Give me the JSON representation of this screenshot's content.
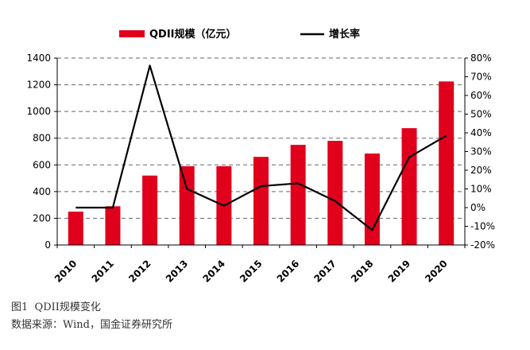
{
  "chart_data": {
    "type": "bar+line",
    "categories": [
      "2010",
      "2011",
      "2012",
      "2013",
      "2014",
      "2015",
      "2016",
      "2017",
      "2018",
      "2019",
      "2020"
    ],
    "series": [
      {
        "name": "QDII规模（亿元）",
        "type": "bar",
        "axis": "left",
        "values": [
          250,
          290,
          520,
          590,
          590,
          660,
          750,
          780,
          685,
          875,
          1225
        ]
      },
      {
        "name": "增长率",
        "type": "line",
        "axis": "right",
        "values": [
          0,
          0,
          76,
          10,
          1,
          11.5,
          13,
          3.5,
          -12,
          27,
          38.5
        ]
      }
    ],
    "y_left": {
      "min": 0,
      "max": 1400,
      "ticks": [
        "0",
        "200",
        "400",
        "600",
        "800",
        "1000",
        "1200",
        "1400"
      ]
    },
    "y_right": {
      "min": -20,
      "max": 80,
      "ticks": [
        "-20%",
        "-10%",
        "0%",
        "10%",
        "20%",
        "30%",
        "40%",
        "50%",
        "60%",
        "70%",
        "80%"
      ]
    },
    "grid": true,
    "legend_position": "top",
    "colors": {
      "bar": "#e0001b",
      "line": "#000000",
      "grid": "#666666"
    }
  },
  "caption": {
    "figure": "图1  QDII规模变化",
    "source": "数据来源：Wind，国金证券研究所"
  }
}
